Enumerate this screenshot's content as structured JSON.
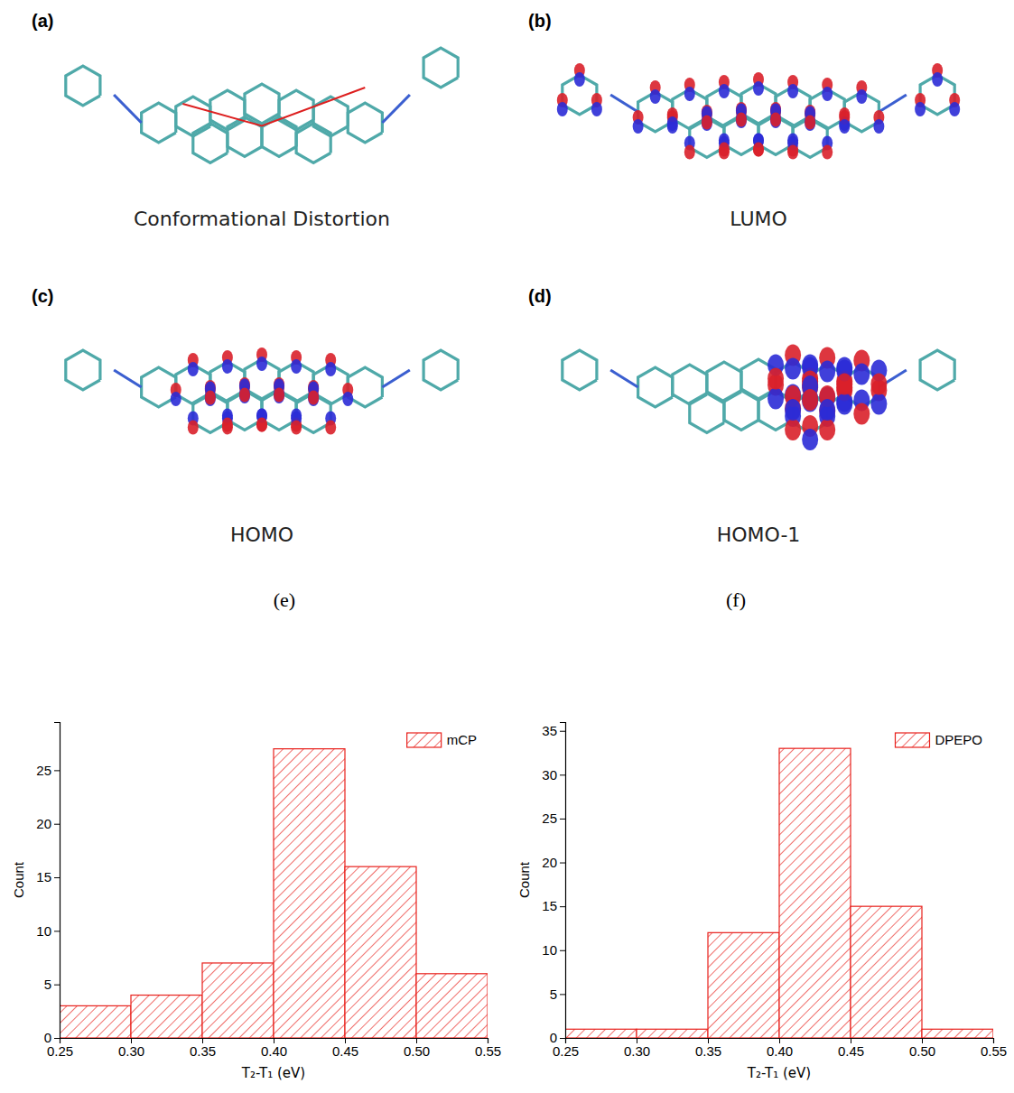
{
  "panels": [
    {
      "letter": "(a)",
      "caption": "Conformational Distortion"
    },
    {
      "letter": "(b)",
      "caption": "LUMO"
    },
    {
      "letter": "(c)",
      "caption": "HOMO"
    },
    {
      "letter": "(d)",
      "caption": "HOMO-1"
    }
  ],
  "chart_data": [
    {
      "type": "histogram",
      "title": "(e)",
      "x_label": "T₂-T₁ (eV)",
      "y_label": "Count",
      "bins": [
        0.25,
        0.3,
        0.35,
        0.4,
        0.45,
        0.5,
        0.55
      ],
      "series": [
        {
          "name": "mCP",
          "color": "#e8201c",
          "values": [
            3,
            4,
            7,
            27,
            16,
            6
          ]
        }
      ],
      "xlim": [
        0.25,
        0.55
      ],
      "xticks": [
        0.25,
        {
          "value": 0.3,
          "label": "0.30"
        },
        0.35,
        {
          "value": 0.4,
          "label": "0.40"
        },
        0.45,
        {
          "value": 0.5,
          "label": "0.50"
        },
        0.55
      ],
      "ylim": [
        0,
        29.5
      ],
      "yticks": [
        0,
        5,
        10,
        15,
        20,
        25
      ],
      "legend": "upper right"
    },
    {
      "type": "histogram",
      "title": "(f)",
      "x_label": "T₂-T₁ (eV)",
      "y_label": "Count",
      "bins": [
        0.25,
        0.3,
        0.35,
        0.4,
        0.45,
        0.5,
        0.55
      ],
      "series": [
        {
          "name": "DPEPO",
          "color": "#e8201c",
          "values": [
            1,
            1,
            12,
            33,
            15,
            1
          ]
        }
      ],
      "xlim": [
        0.25,
        0.55
      ],
      "xticks": [
        0.25,
        {
          "value": 0.3,
          "label": "0.30"
        },
        0.35,
        {
          "value": 0.4,
          "label": "0.40"
        },
        0.45,
        {
          "value": 0.5,
          "label": "0.50"
        },
        0.55
      ],
      "ylim": [
        0,
        36
      ],
      "yticks": [
        0,
        5,
        10,
        15,
        20,
        25,
        30,
        35
      ],
      "legend": "upper right"
    }
  ]
}
